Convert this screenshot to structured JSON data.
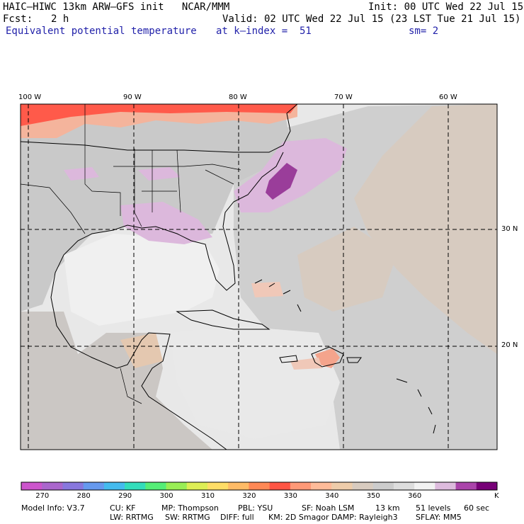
{
  "header": {
    "model": "HAIC–HIWC 13km ARW–GFS init   NCAR/MMM",
    "init": "Init: 00 UTC Wed 22 Jul 15",
    "fcst_label": "Fcst:",
    "fcst_value": "2 h",
    "valid": "Valid: 02 UTC Wed 22 Jul 15 (23 LST Tue 21 Jul 15)",
    "field": "Equivalent potential temperature",
    "level": "at k–index =  51",
    "smooth": "sm= 2"
  },
  "axes": {
    "lon_labels": [
      "100 W",
      "90 W",
      "80 W",
      "70 W",
      "60 W"
    ],
    "lat_labels": [
      "30 N",
      "20 N"
    ]
  },
  "colorbar": {
    "unit": "K",
    "tick_labels": [
      "270",
      "280",
      "290",
      "300",
      "310",
      "320",
      "330",
      "340",
      "350",
      "360"
    ],
    "colors": [
      "#cc55cc",
      "#aa66cc",
      "#8877dd",
      "#6699ee",
      "#44bbee",
      "#33ddbb",
      "#55ee77",
      "#99ee55",
      "#ddee55",
      "#ffdd66",
      "#ffbb66",
      "#ff8855",
      "#ff5544",
      "#ff9977",
      "#ffbb99",
      "#eeccaa",
      "#d8cbbf",
      "#cccccc",
      "#dddddd",
      "#f2f2f2",
      "#ddbbdd",
      "#aa44aa",
      "#770077"
    ]
  },
  "footer": {
    "line1": [
      "Model Info: V3.7",
      "CU: KF",
      "MP: Thompson",
      "PBL: YSU",
      "SF: Noah LSM",
      "13 km",
      "51 levels",
      "60 sec"
    ],
    "line2": [
      "LW: RRTMG",
      "SW: RRTMG",
      "DIFF: full",
      "KM: 2D Smagor",
      "DAMP: Rayleigh3",
      "SFLAY: MM5"
    ]
  }
}
